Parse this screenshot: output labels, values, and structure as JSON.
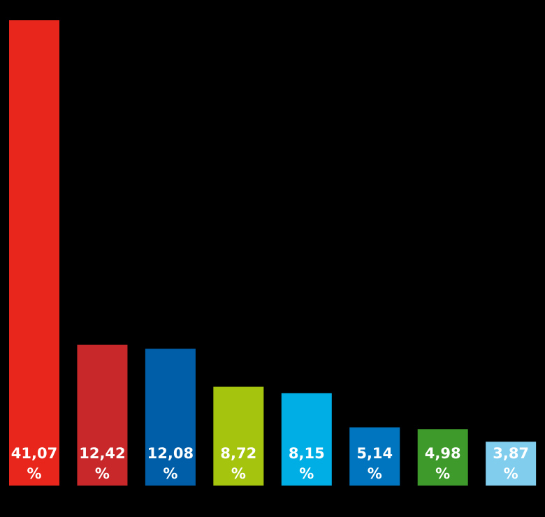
{
  "chart_data": {
    "type": "bar",
    "values": [
      41.07,
      12.42,
      12.08,
      8.72,
      8.15,
      5.14,
      4.98,
      3.87
    ],
    "value_labels": [
      "41,07 %",
      "12,42 %",
      "12,08 %",
      "8,72 %",
      "8,15 %",
      "5,14 %",
      "4,98 %",
      "3,87 %"
    ],
    "colors": [
      "#e8261c",
      "#c8282a",
      "#005ea8",
      "#a5c40e",
      "#00aee6",
      "#0075bf",
      "#3e9a2a",
      "#80cdee"
    ]
  }
}
